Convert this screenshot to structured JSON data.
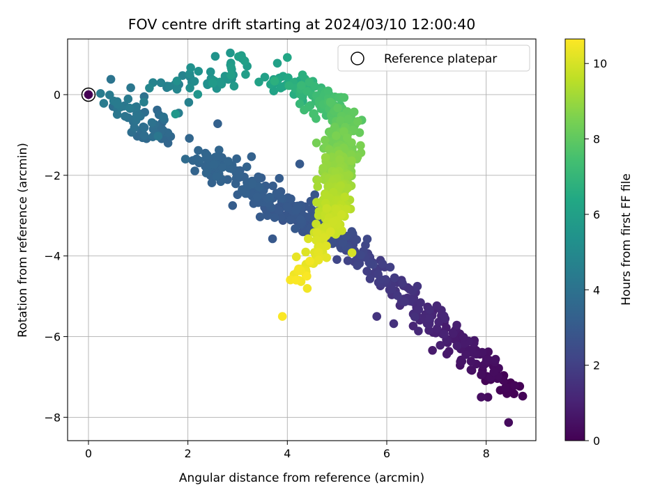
{
  "chart_data": {
    "type": "scatter",
    "title": "FOV centre drift starting at 2024/03/10 12:00:40",
    "xlabel": "Angular distance from reference (arcmin)",
    "ylabel": "Rotation from reference (arcmin)",
    "xlim": [
      -0.42,
      9.0
    ],
    "ylim": [
      -8.58,
      1.38
    ],
    "xticks": [
      "0",
      "2",
      "4",
      "6",
      "8"
    ],
    "yticks": [
      "0",
      "−2",
      "−4",
      "−6",
      "−8"
    ],
    "grid": true,
    "legend": {
      "placement": "top-right",
      "entries": [
        "Reference platepar"
      ]
    },
    "colorbar": {
      "label": "Hours from first FF file",
      "range": [
        0,
        10.65
      ],
      "ticks": [
        "0",
        "2",
        "4",
        "6",
        "8",
        "10"
      ],
      "colormap": "viridis"
    },
    "reference_point": {
      "x": 0,
      "y": 0
    },
    "arms": [
      {
        "hours": [
          0.0,
          2.5
        ],
        "from": [
          8.5,
          -7.3
        ],
        "to": [
          5.0,
          -3.5
        ],
        "count": 220,
        "spread": 0.16
      },
      {
        "hours": [
          2.5,
          3.0
        ],
        "from": [
          5.0,
          -3.5
        ],
        "to": [
          3.9,
          -2.8
        ],
        "count": 120,
        "spread": 0.2
      },
      {
        "hours": [
          3.0,
          3.5
        ],
        "from": [
          3.9,
          -2.8
        ],
        "to": [
          2.3,
          -1.5
        ],
        "count": 110,
        "spread": 0.2
      },
      {
        "hours": [
          3.5,
          4.5
        ],
        "from": [
          1.6,
          -1.0
        ],
        "to": [
          0.4,
          -0.1
        ],
        "count": 60,
        "spread": 0.18
      },
      {
        "hours": [
          4.5,
          6.0
        ],
        "from": [
          1.5,
          0.2
        ],
        "to": [
          3.0,
          0.6
        ],
        "count": 50,
        "spread": 0.22
      },
      {
        "hours": [
          6.0,
          7.2
        ],
        "from": [
          3.6,
          0.4
        ],
        "to": [
          4.6,
          0.0
        ],
        "count": 45,
        "spread": 0.15
      },
      {
        "hours": [
          7.2,
          8.0
        ],
        "from": [
          4.6,
          -0.1
        ],
        "to": [
          5.2,
          -0.6
        ],
        "count": 60,
        "spread": 0.14
      },
      {
        "hours": [
          8.0,
          9.0
        ],
        "from": [
          5.2,
          -0.7
        ],
        "to": [
          5.0,
          -2.0
        ],
        "count": 170,
        "spread": 0.17
      },
      {
        "hours": [
          9.0,
          9.8
        ],
        "from": [
          5.0,
          -2.0
        ],
        "to": [
          4.9,
          -3.2
        ],
        "count": 150,
        "spread": 0.16
      },
      {
        "hours": [
          9.8,
          10.6
        ],
        "from": [
          4.9,
          -3.2
        ],
        "to": [
          4.2,
          -4.7
        ],
        "count": 60,
        "spread": 0.12
      }
    ],
    "outliers": [
      {
        "x": 8.45,
        "y": -8.13,
        "h": 0.3
      },
      {
        "x": 7.9,
        "y": -7.5,
        "h": 0.4
      },
      {
        "x": 5.8,
        "y": -5.5,
        "h": 1.6
      },
      {
        "x": 3.9,
        "y": -5.5,
        "h": 10.6
      },
      {
        "x": 5.3,
        "y": -3.92,
        "h": 10.0
      },
      {
        "x": 4.25,
        "y": -1.72,
        "h": 3.0
      },
      {
        "x": 2.6,
        "y": -0.72,
        "h": 3.3
      },
      {
        "x": 2.9,
        "y": -2.75,
        "h": 3.1
      },
      {
        "x": 3.6,
        "y": -3.0,
        "h": 3.0
      },
      {
        "x": 4.0,
        "y": 0.92,
        "h": 6.3
      },
      {
        "x": 3.8,
        "y": 0.78,
        "h": 6.0
      },
      {
        "x": 0.45,
        "y": 0.38,
        "h": 4.1
      },
      {
        "x": 1.75,
        "y": -0.48,
        "h": 5.6
      },
      {
        "x": 2.55,
        "y": 0.95,
        "h": 5.4
      },
      {
        "x": 1.95,
        "y": -1.6,
        "h": 3.7
      },
      {
        "x": 1.4,
        "y": -1.03,
        "h": 4.2
      },
      {
        "x": 0.85,
        "y": 0.17,
        "h": 4.2
      },
      {
        "x": 1.12,
        "y": -0.05,
        "h": 4.0
      }
    ]
  }
}
